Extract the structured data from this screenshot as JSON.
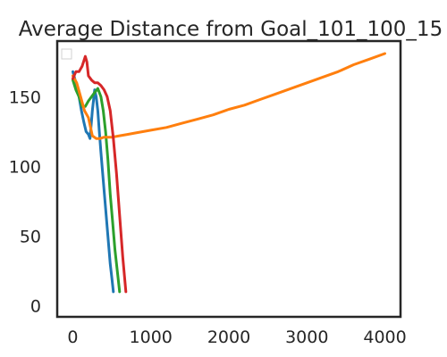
{
  "chart_data": {
    "type": "line",
    "title": "Average Distance from Goal_101_100_15",
    "xlabel": "",
    "ylabel": "",
    "xlim": [
      -200,
      4200
    ],
    "ylim": [
      -8,
      190
    ],
    "xticks": [
      0,
      1000,
      2000,
      3000,
      4000
    ],
    "xtick_labels": [
      "0",
      "1000",
      "2000",
      "3000",
      "4000"
    ],
    "yticks": [
      0,
      50,
      100,
      150
    ],
    "ytick_labels": [
      "0",
      "50",
      "100",
      "150"
    ],
    "grid": false,
    "legend": {
      "placement": "top-left",
      "entries": []
    },
    "series": [
      {
        "color": "#1f77b4",
        "x": [
          0,
          40,
          80,
          110,
          140,
          170,
          200,
          220,
          250,
          280,
          300,
          320,
          340,
          360,
          390,
          420,
          450,
          480,
          500,
          520
        ],
        "y": [
          168,
          160,
          150,
          140,
          132,
          125,
          123,
          120,
          140,
          155,
          150,
          140,
          125,
          110,
          90,
          70,
          50,
          30,
          20,
          10
        ]
      },
      {
        "color": "#2ca02c",
        "x": [
          0,
          40,
          80,
          120,
          160,
          200,
          240,
          280,
          320,
          360,
          390,
          420,
          450,
          480,
          510,
          540,
          570,
          600
        ],
        "y": [
          162,
          155,
          150,
          143,
          143,
          147,
          150,
          153,
          156,
          150,
          140,
          125,
          105,
          80,
          60,
          40,
          25,
          10
        ]
      },
      {
        "color": "#ff7f0e",
        "x": [
          0,
          50,
          100,
          150,
          200,
          250,
          300,
          350,
          400,
          500,
          600,
          700,
          800,
          1000,
          1200,
          1400,
          1600,
          1800,
          2000,
          2200,
          2400,
          2600,
          2800,
          3000,
          3200,
          3400,
          3600,
          3800,
          4000
        ],
        "y": [
          165,
          160,
          150,
          140,
          135,
          122,
          120,
          120,
          121,
          121,
          122,
          123,
          124,
          126,
          128,
          131,
          134,
          137,
          141,
          144,
          148,
          152,
          156,
          160,
          164,
          168,
          173,
          177,
          181
        ]
      },
      {
        "color": "#d62728",
        "x": [
          0,
          40,
          80,
          120,
          160,
          180,
          200,
          240,
          280,
          320,
          360,
          400,
          440,
          480,
          520,
          560,
          600,
          640,
          680
        ],
        "y": [
          163,
          168,
          168,
          172,
          179,
          175,
          165,
          162,
          160,
          160,
          158,
          155,
          150,
          140,
          120,
          95,
          65,
          35,
          10
        ]
      }
    ]
  }
}
